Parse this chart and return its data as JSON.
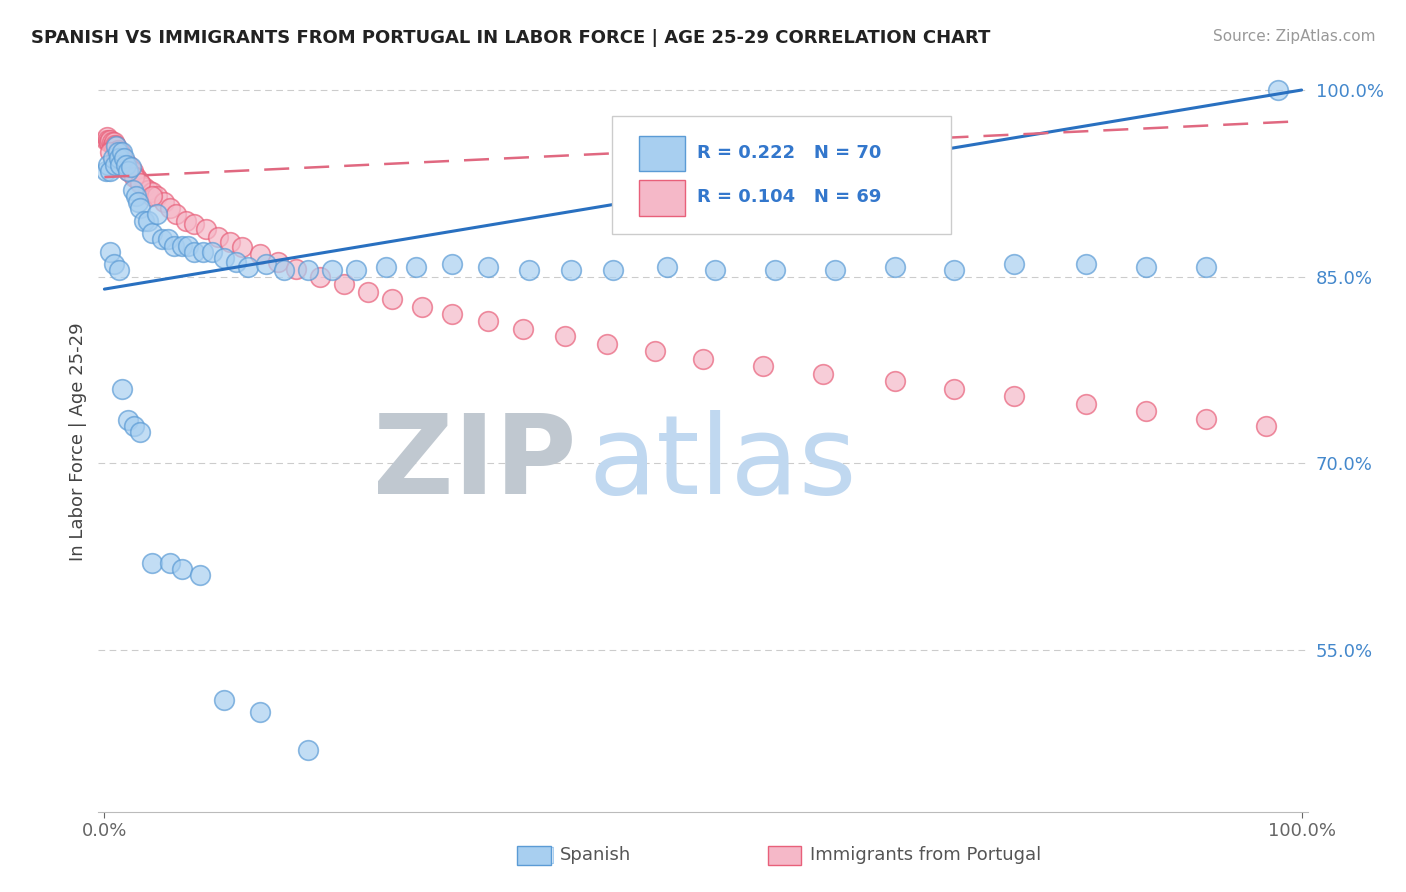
{
  "title": "SPANISH VS IMMIGRANTS FROM PORTUGAL IN LABOR FORCE | AGE 25-29 CORRELATION CHART",
  "source": "Source: ZipAtlas.com",
  "ylabel": "In Labor Force | Age 25-29",
  "blue_color": "#a8cff0",
  "blue_edge_color": "#5b9bd5",
  "pink_color": "#f5b8c8",
  "pink_edge_color": "#e8607a",
  "trend_blue_color": "#2970c0",
  "trend_pink_color": "#e06880",
  "grid_color": "#cccccc",
  "watermark_zip_color": "#c0c8d0",
  "watermark_atlas_color": "#c0d8f0",
  "ymin": 0.42,
  "ymax": 1.015,
  "xmin": -0.005,
  "xmax": 1.005,
  "blue_trend_y0": 0.84,
  "blue_trend_y1": 1.0,
  "pink_trend_y0": 0.93,
  "pink_trend_y1": 0.975,
  "blue_x": [
    0.001,
    0.003,
    0.005,
    0.007,
    0.009,
    0.01,
    0.011,
    0.012,
    0.013,
    0.015,
    0.016,
    0.018,
    0.02,
    0.022,
    0.024,
    0.026,
    0.028,
    0.03,
    0.033,
    0.036,
    0.04,
    0.044,
    0.048,
    0.053,
    0.058,
    0.065,
    0.07,
    0.075,
    0.082,
    0.09,
    0.1,
    0.11,
    0.12,
    0.135,
    0.15,
    0.17,
    0.19,
    0.21,
    0.235,
    0.26,
    0.29,
    0.32,
    0.355,
    0.39,
    0.425,
    0.47,
    0.51,
    0.56,
    0.61,
    0.66,
    0.71,
    0.76,
    0.82,
    0.87,
    0.92,
    0.98,
    0.005,
    0.008,
    0.012,
    0.015,
    0.02,
    0.025,
    0.03,
    0.04,
    0.055,
    0.065,
    0.08,
    0.1,
    0.13,
    0.17
  ],
  "blue_y": [
    0.935,
    0.94,
    0.935,
    0.945,
    0.94,
    0.955,
    0.95,
    0.945,
    0.94,
    0.95,
    0.945,
    0.94,
    0.935,
    0.938,
    0.92,
    0.915,
    0.91,
    0.905,
    0.895,
    0.895,
    0.885,
    0.9,
    0.88,
    0.88,
    0.875,
    0.875,
    0.875,
    0.87,
    0.87,
    0.87,
    0.865,
    0.862,
    0.858,
    0.86,
    0.855,
    0.855,
    0.855,
    0.855,
    0.858,
    0.858,
    0.86,
    0.858,
    0.855,
    0.855,
    0.855,
    0.858,
    0.855,
    0.855,
    0.855,
    0.858,
    0.855,
    0.86,
    0.86,
    0.858,
    0.858,
    1.0,
    0.87,
    0.86,
    0.855,
    0.76,
    0.735,
    0.73,
    0.725,
    0.62,
    0.62,
    0.615,
    0.61,
    0.51,
    0.5,
    0.47
  ],
  "pink_x": [
    0.001,
    0.002,
    0.003,
    0.004,
    0.005,
    0.006,
    0.007,
    0.008,
    0.009,
    0.01,
    0.011,
    0.012,
    0.013,
    0.014,
    0.015,
    0.016,
    0.017,
    0.018,
    0.019,
    0.02,
    0.022,
    0.024,
    0.026,
    0.028,
    0.03,
    0.033,
    0.036,
    0.04,
    0.044,
    0.05,
    0.055,
    0.06,
    0.068,
    0.075,
    0.085,
    0.095,
    0.105,
    0.115,
    0.13,
    0.145,
    0.16,
    0.18,
    0.2,
    0.22,
    0.24,
    0.265,
    0.29,
    0.32,
    0.35,
    0.385,
    0.42,
    0.46,
    0.5,
    0.55,
    0.6,
    0.66,
    0.71,
    0.76,
    0.82,
    0.87,
    0.92,
    0.97,
    0.005,
    0.01,
    0.015,
    0.02,
    0.025,
    0.03,
    0.04
  ],
  "pink_y": [
    0.96,
    0.962,
    0.96,
    0.958,
    0.96,
    0.958,
    0.956,
    0.958,
    0.956,
    0.955,
    0.952,
    0.95,
    0.95,
    0.948,
    0.945,
    0.942,
    0.942,
    0.94,
    0.94,
    0.94,
    0.935,
    0.935,
    0.93,
    0.928,
    0.925,
    0.922,
    0.92,
    0.918,
    0.915,
    0.91,
    0.905,
    0.9,
    0.895,
    0.892,
    0.888,
    0.882,
    0.878,
    0.874,
    0.868,
    0.862,
    0.856,
    0.85,
    0.844,
    0.838,
    0.832,
    0.826,
    0.82,
    0.814,
    0.808,
    0.802,
    0.796,
    0.79,
    0.784,
    0.778,
    0.772,
    0.766,
    0.76,
    0.754,
    0.748,
    0.742,
    0.736,
    0.73,
    0.95,
    0.945,
    0.94,
    0.935,
    0.93,
    0.925,
    0.915
  ]
}
